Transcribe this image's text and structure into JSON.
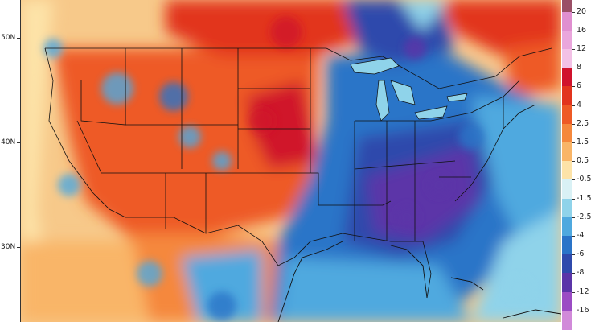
{
  "map": {
    "latitude_labels": [
      "50N",
      "40N",
      "30N"
    ],
    "colorbar": {
      "labels": [
        "20",
        "16",
        "12",
        "8",
        "6",
        "4",
        "2.5",
        "1.5",
        "0.5",
        "-0.5",
        "-1.5",
        "-2.5",
        "-4",
        "-6",
        "-8",
        "-12",
        "-16"
      ],
      "colors": {
        "20": "#e08fd0",
        "16": "#eaa6dc",
        "12": "#f3c1e6",
        "8": "#d0122c",
        "6": "#e2341d",
        "4": "#ee5a25",
        "2.5": "#f5883c",
        "1.5": "#f9b567",
        "0.5": "#fde3a8",
        "-0.5": "#d9f1f5",
        "-1.5": "#8fd3ea",
        "-2.5": "#4fa9df",
        "-4": "#2a74c8",
        "-6": "#2f4aac",
        "-8": "#5b35a8",
        "-12": "#9b4cc4",
        "-16": "#d18ad9"
      }
    }
  }
}
